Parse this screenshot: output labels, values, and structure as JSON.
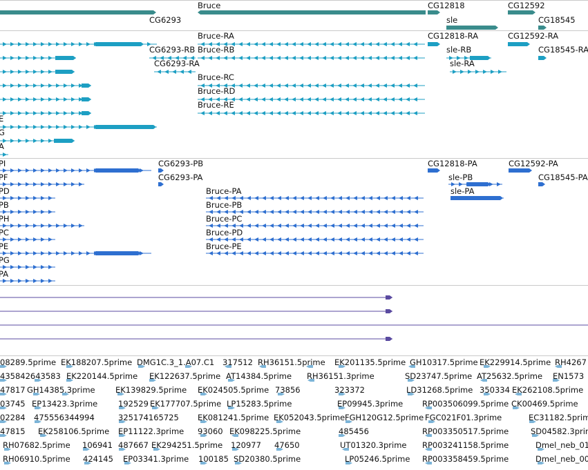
{
  "colors": {
    "gene": "#3a8c8c",
    "transcript_a": "#1d9fc3",
    "transcript_b": "#2e6fd0",
    "est_line": "#5a4aa0",
    "est_feature": "#7bb4d8",
    "separator": "#c9c9c9"
  },
  "genes": [
    {
      "name": "Bruce"
    },
    {
      "name": "CG12818"
    },
    {
      "name": "CG12592"
    },
    {
      "name": "CG6293"
    },
    {
      "name": "sle"
    },
    {
      "name": "CG18545"
    }
  ],
  "transcripts_a": [
    {
      "name": "Bruce-RA"
    },
    {
      "name": "CG12818-RA"
    },
    {
      "name": "CG12592-RA"
    },
    {
      "name": "CG6293-RB"
    },
    {
      "name": "Bruce-RB"
    },
    {
      "name": "sle-RB"
    },
    {
      "name": "CG18545-RA"
    },
    {
      "name": "CG6293-RA"
    },
    {
      "name": "sle-RA"
    },
    {
      "name": "Bruce-RC"
    },
    {
      "name": "Bruce-RD"
    },
    {
      "name": "Bruce-RE"
    },
    {
      "name": "E"
    },
    {
      "name": "G"
    },
    {
      "name": "A"
    }
  ],
  "transcripts_b": [
    {
      "name": "PI"
    },
    {
      "name": "CG6293-PB"
    },
    {
      "name": "CG12818-PA"
    },
    {
      "name": "CG12592-PA"
    },
    {
      "name": "PF"
    },
    {
      "name": "CG6293-PA"
    },
    {
      "name": "sle-PB"
    },
    {
      "name": "CG18545-PA"
    },
    {
      "name": "PD"
    },
    {
      "name": "Bruce-PA"
    },
    {
      "name": "sle-PA"
    },
    {
      "name": "PB"
    },
    {
      "name": "Bruce-PB"
    },
    {
      "name": "PH"
    },
    {
      "name": "Bruce-PC"
    },
    {
      "name": "PC"
    },
    {
      "name": "Bruce-PD"
    },
    {
      "name": "PE"
    },
    {
      "name": "Bruce-PE"
    },
    {
      "name": "PG"
    },
    {
      "name": "PA"
    }
  ],
  "est_rows": [
    [
      "08289.5prime",
      "EK188207.5prime",
      "DMG1C.3_1.A07.C1",
      "317512",
      "RH36151.5prime",
      "EK201135.5prime",
      "GH10317.5prime",
      "EK229914.5prime",
      "RH4267"
    ],
    [
      "435842643583",
      "EK220144.5prime",
      "EK122637.5prime",
      "AT14384.5prime",
      "RH36151.3prime",
      "SD23747.5prime",
      "AT25632.5prime",
      "EN1573"
    ],
    [
      "47817",
      "GH14385.3prime",
      "EK139829.5prime",
      "EK024505.5prime",
      "73856",
      "323372",
      "LD31268.5prime",
      "350334",
      "EK262108.5prime"
    ],
    [
      "03745",
      "EP13423.3prime",
      "192529",
      "EK177707.5prime",
      "LP15283.5prime",
      "EP09945.3prime",
      "RP003506099.5prime",
      "CK00469.5prime"
    ],
    [
      "02284",
      "475556344994",
      "325174165725",
      "EK081241.5prime",
      "EK052043.5prime",
      "FGH120G12.5prime",
      "FGC021F01.3prime",
      "EC31182.5prime"
    ],
    [
      "47815",
      "EK258106.5prime",
      "EP11122.3prime",
      "93060",
      "EK098225.5prime",
      "485456",
      "RP003350517.5prime",
      "SD04582.3prime"
    ],
    [
      "RH07682.5prime",
      "106941",
      "487667",
      "EK294251.5prime",
      "120977",
      "47650",
      "UT01320.3prime",
      "RP003241158.5prime",
      "Dmel_neb_01"
    ],
    [
      "RH06910.5prime",
      "424145",
      "EP03341.3prime",
      "100185",
      "SD20380.5prime",
      "LP05246.5prime",
      "RP003358459.5prime",
      "Dmel_neb_00"
    ]
  ]
}
